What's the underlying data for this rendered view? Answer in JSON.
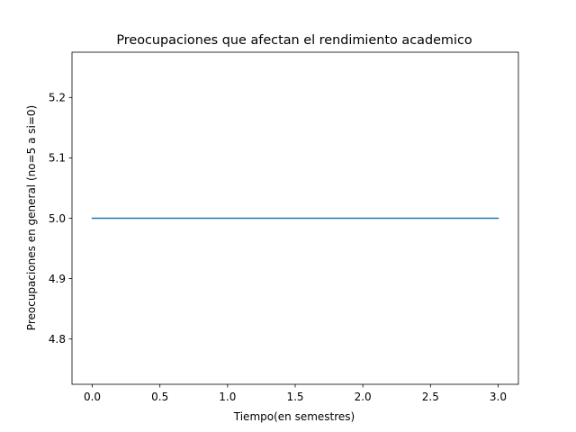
{
  "chart_data": {
    "type": "line",
    "title": "Preocupaciones que afectan el rendimiento academico",
    "xlabel": "Tiempo(en semestres)",
    "ylabel": "Preocupaciones en general (no=5 a si=0)",
    "xlim": [
      -0.15,
      3.15
    ],
    "ylim": [
      4.725,
      5.275
    ],
    "xticks": [
      0.0,
      0.5,
      1.0,
      1.5,
      2.0,
      2.5,
      3.0
    ],
    "xtick_labels": [
      "0.0",
      "0.5",
      "1.0",
      "1.5",
      "2.0",
      "2.5",
      "3.0"
    ],
    "yticks": [
      4.8,
      4.9,
      5.0,
      5.1,
      5.2
    ],
    "ytick_labels": [
      "4.8",
      "4.9",
      "5.0",
      "5.1",
      "5.2"
    ],
    "grid": false,
    "series": [
      {
        "x": [
          0,
          1,
          2,
          3
        ],
        "values": [
          5,
          5,
          5,
          5
        ],
        "color": "#1f77b4"
      }
    ]
  }
}
